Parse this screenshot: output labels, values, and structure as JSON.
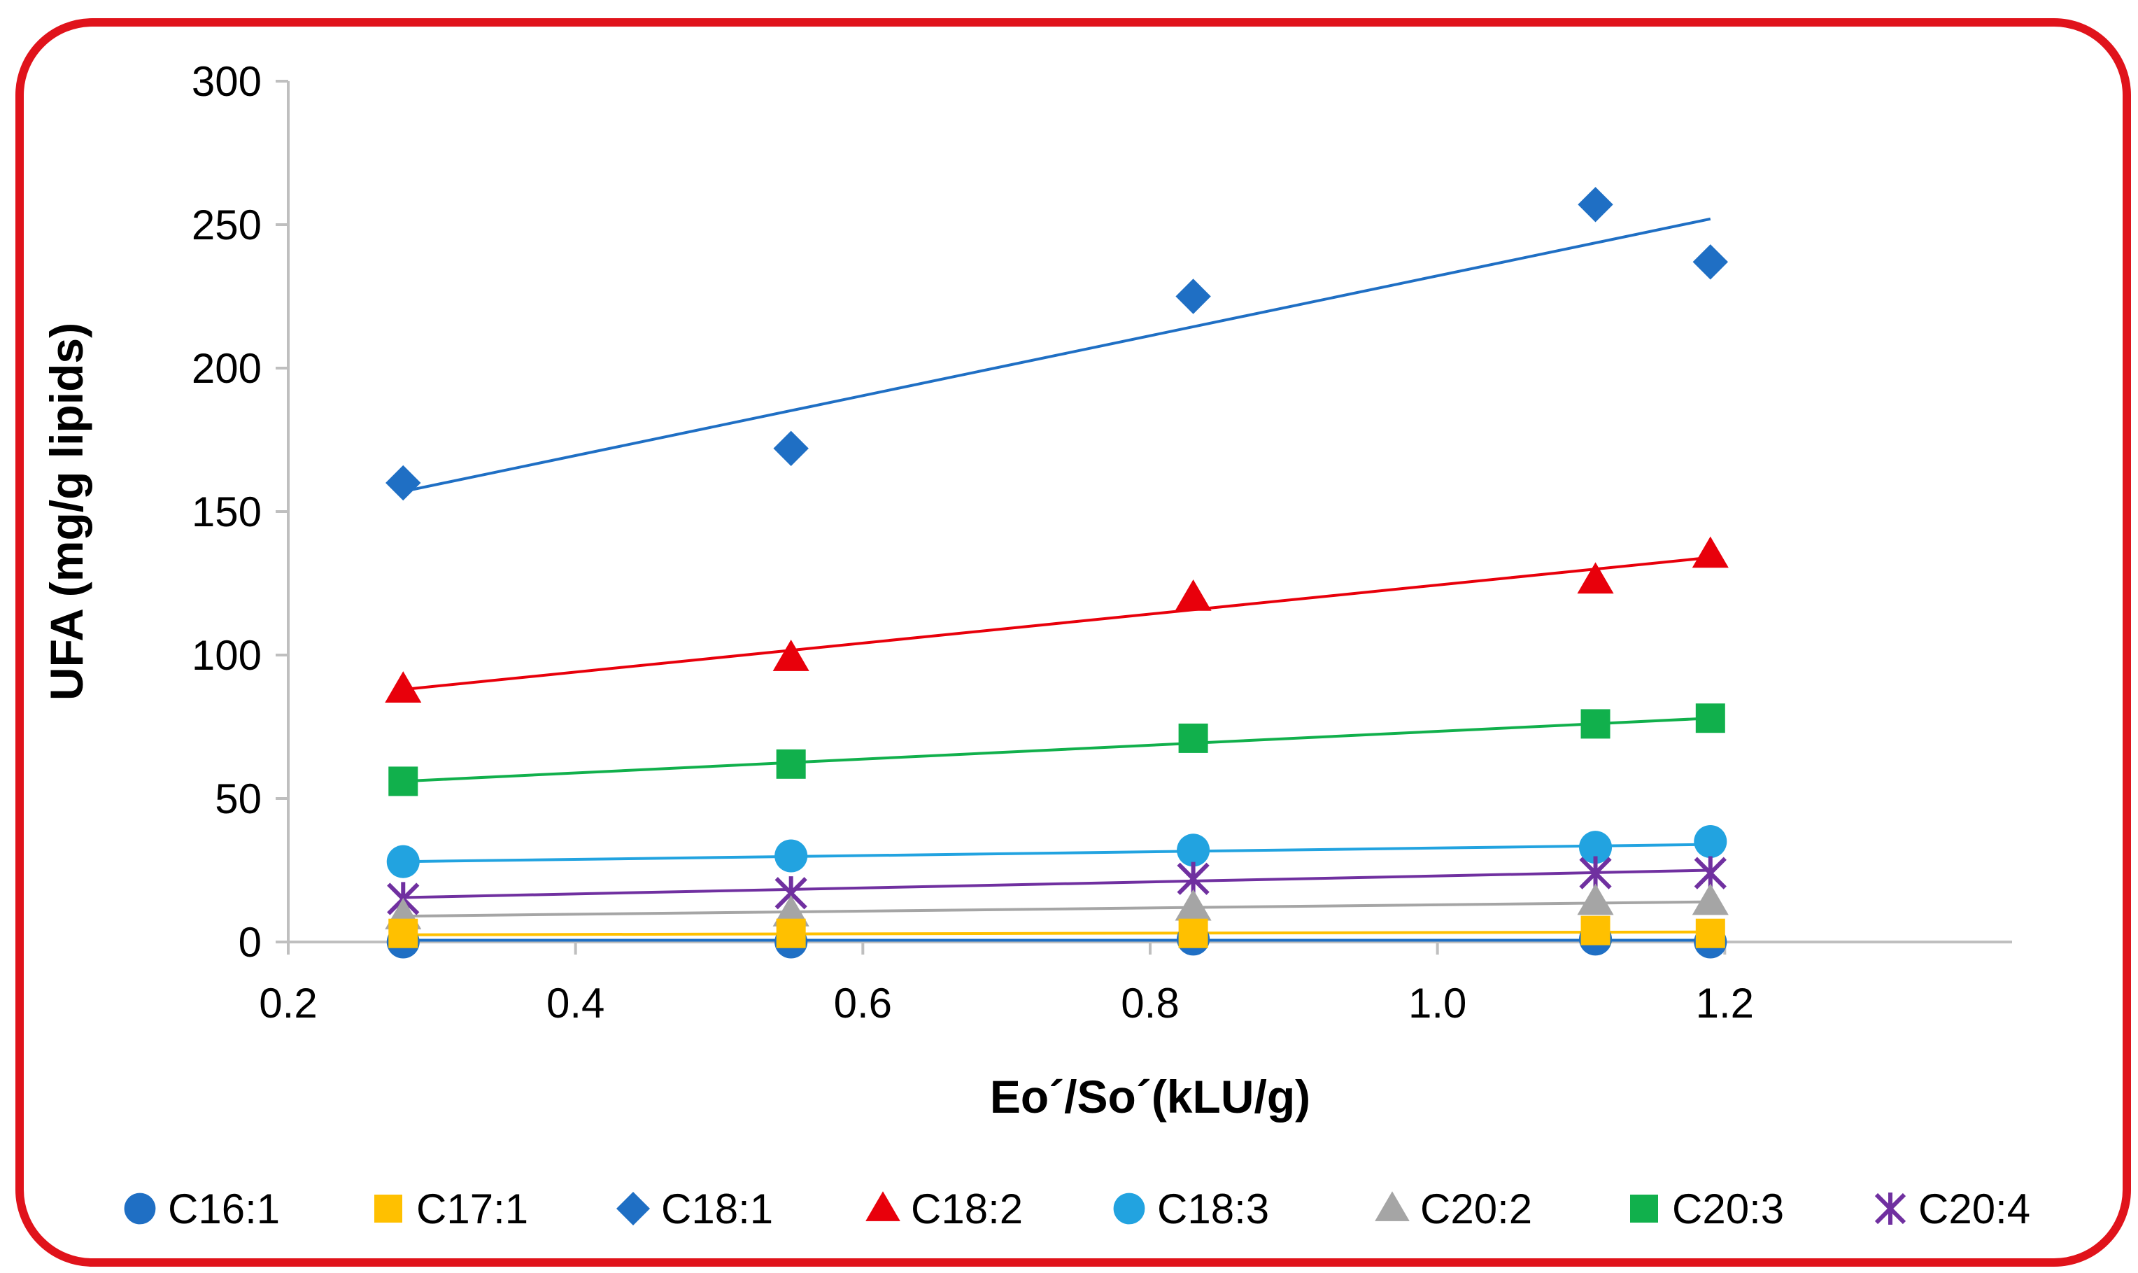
{
  "chart_data": {
    "type": "scatter",
    "title": "",
    "xlabel": "Eo´/So´(kLU/g)",
    "ylabel": "UFA (mg/g lipids)",
    "xlim": [
      0.2,
      1.4
    ],
    "ylim": [
      0,
      300
    ],
    "xticks": [
      0.2,
      0.4,
      0.6,
      0.8,
      1.0,
      1.2
    ],
    "xtick_labels": [
      "0.2",
      "0.4",
      "0.6",
      "0.8",
      "1.0",
      "1.2"
    ],
    "yticks": [
      0,
      50,
      100,
      150,
      200,
      250,
      300
    ],
    "ytick_labels": [
      "0",
      "50",
      "100",
      "150",
      "200",
      "250",
      "300"
    ],
    "grid": false,
    "legend_position": "bottom",
    "trendlines": true,
    "x": [
      0.28,
      0.55,
      0.83,
      1.11,
      1.19
    ],
    "series": [
      {
        "name": "C16:1",
        "marker": "circle",
        "color": "#1f6fc4",
        "values": [
          0,
          0,
          1,
          1,
          0
        ],
        "trend": [
          0.6,
          0.6
        ]
      },
      {
        "name": "C17:1",
        "marker": "square",
        "color": "#ffc000",
        "values": [
          3,
          3,
          3,
          4,
          3
        ],
        "trend": [
          2.5,
          3.5
        ]
      },
      {
        "name": "C18:1",
        "marker": "diamond",
        "color": "#1f6fc4",
        "values": [
          160,
          172,
          225,
          257,
          237
        ],
        "trend": [
          157,
          252
        ]
      },
      {
        "name": "C18:2",
        "marker": "triangle",
        "color": "#e8000b",
        "values": [
          88,
          99,
          120,
          126,
          135
        ],
        "trend": [
          88,
          134
        ]
      },
      {
        "name": "C18:3",
        "marker": "circle",
        "color": "#22a3e0",
        "values": [
          28,
          30,
          32,
          33,
          35
        ],
        "trend": [
          28,
          34
        ]
      },
      {
        "name": "C20:2",
        "marker": "triangle",
        "color": "#a5a5a5",
        "values": [
          9,
          10,
          12,
          14,
          14
        ],
        "trend": [
          9,
          14
        ]
      },
      {
        "name": "C20:3",
        "marker": "square",
        "color": "#11b04c",
        "values": [
          56,
          62,
          71,
          76,
          78
        ],
        "trend": [
          56,
          78
        ]
      },
      {
        "name": "C20:4",
        "marker": "star",
        "color": "#7030a0",
        "values": [
          15,
          17,
          22,
          24,
          24
        ],
        "trend": [
          15.5,
          25
        ]
      }
    ]
  }
}
